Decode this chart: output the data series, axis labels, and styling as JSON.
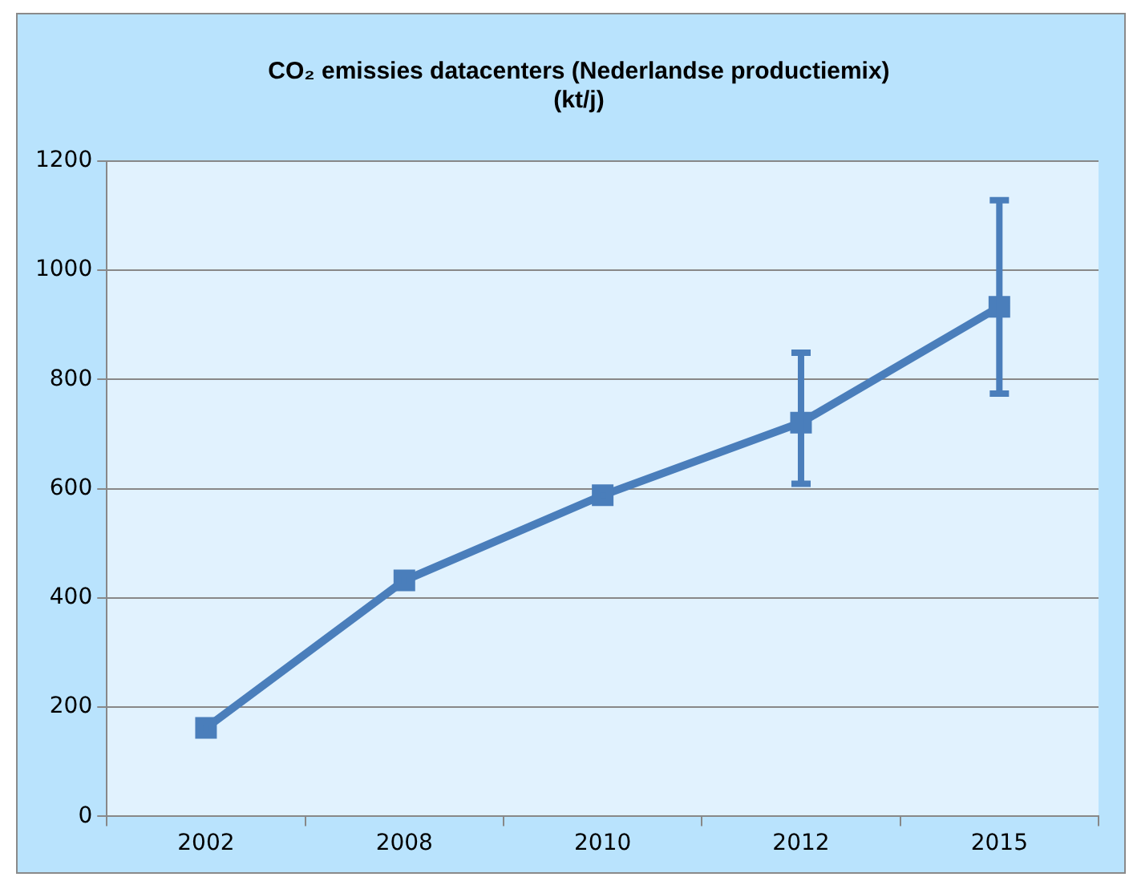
{
  "chart_data": {
    "type": "line",
    "title": "CO₂ emissies datacenters (Nederlandse productiemix) (kt/j)",
    "categories": [
      "2002",
      "2008",
      "2010",
      "2012",
      "2015"
    ],
    "series": [
      {
        "color": "#4a7ebb",
        "values": [
          162,
          432,
          588,
          721,
          933
        ],
        "errors": [
          null,
          null,
          null,
          [
            609,
            849
          ],
          [
            774,
            1128
          ]
        ]
      }
    ],
    "ylim": [
      0,
      1200
    ],
    "yticks": [
      0,
      200,
      400,
      600,
      800,
      1000,
      1200
    ],
    "grid": "y",
    "legend": false,
    "marker": "square",
    "line_style": "solid"
  }
}
